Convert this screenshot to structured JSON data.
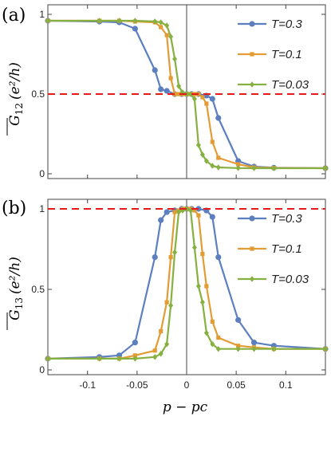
{
  "colors": {
    "T03": "#5b7fbf",
    "T01": "#e39c35",
    "T003": "#86b040",
    "ref": "#e8191a"
  },
  "chart_data": [
    {
      "type": "line",
      "panel_label": "(a)",
      "ylabel_main": "G",
      "ylabel_sub": "12",
      "ylabel_units": "(e²/h)",
      "xlabel": "p − pc",
      "xlim": [
        -0.14,
        0.14
      ],
      "ylim": [
        0,
        1
      ],
      "yticks": [
        0,
        0.5,
        1
      ],
      "ytick_labels": [
        "0",
        "0.5",
        "1"
      ],
      "reference_line_y": 0.5,
      "legend_position": "top-right",
      "series": [
        {
          "name": "T=0.3",
          "marker": "circle",
          "x": [
            -0.14,
            -0.088,
            -0.068,
            -0.052,
            -0.032,
            -0.026,
            -0.02,
            -0.012,
            -0.005,
            0,
            0.005,
            0.012,
            0.02,
            0.026,
            0.032,
            0.052,
            0.068,
            0.088,
            0.14
          ],
          "y": [
            0.96,
            0.955,
            0.95,
            0.91,
            0.65,
            0.53,
            0.52,
            0.5,
            0.5,
            0.5,
            0.5,
            0.5,
            0.49,
            0.47,
            0.35,
            0.08,
            0.045,
            0.038,
            0.035
          ]
        },
        {
          "name": "T=0.1",
          "marker": "square",
          "x": [
            -0.14,
            -0.088,
            -0.068,
            -0.052,
            -0.032,
            -0.026,
            -0.02,
            -0.016,
            -0.012,
            -0.008,
            -0.004,
            0,
            0.004,
            0.008,
            0.012,
            0.016,
            0.02,
            0.026,
            0.032,
            0.052,
            0.068,
            0.088,
            0.14
          ],
          "y": [
            0.96,
            0.96,
            0.96,
            0.955,
            0.95,
            0.92,
            0.87,
            0.6,
            0.5,
            0.5,
            0.5,
            0.5,
            0.5,
            0.5,
            0.5,
            0.48,
            0.44,
            0.2,
            0.1,
            0.06,
            0.04,
            0.037,
            0.035
          ]
        },
        {
          "name": "T=0.03",
          "marker": "diamond",
          "x": [
            -0.14,
            -0.088,
            -0.068,
            -0.052,
            -0.032,
            -0.026,
            -0.02,
            -0.016,
            -0.012,
            -0.008,
            -0.004,
            0,
            0.004,
            0.008,
            0.012,
            0.016,
            0.02,
            0.026,
            0.032,
            0.052,
            0.068,
            0.088,
            0.14
          ],
          "y": [
            0.96,
            0.96,
            0.96,
            0.96,
            0.955,
            0.95,
            0.93,
            0.86,
            0.72,
            0.55,
            0.51,
            0.5,
            0.5,
            0.47,
            0.18,
            0.12,
            0.08,
            0.05,
            0.04,
            0.036,
            0.035,
            0.035,
            0.035
          ]
        }
      ]
    },
    {
      "type": "line",
      "panel_label": "(b)",
      "ylabel_main": "G",
      "ylabel_sub": "13",
      "ylabel_units": "(e²/h)",
      "xlabel": "p − pc",
      "xlim": [
        -0.14,
        0.14
      ],
      "ylim": [
        0,
        1
      ],
      "yticks": [
        0,
        0.5,
        1
      ],
      "ytick_labels": [
        "0",
        "0.5",
        "1"
      ],
      "xticks": [
        -0.1,
        -0.05,
        0,
        0.05,
        0.1
      ],
      "xtick_labels": [
        "-0.1",
        "-0.05",
        "0",
        "0.05",
        "0.1"
      ],
      "reference_line_y": 1,
      "legend_position": "top-right",
      "series": [
        {
          "name": "T=0.3",
          "marker": "circle",
          "x": [
            -0.14,
            -0.088,
            -0.068,
            -0.052,
            -0.032,
            -0.026,
            -0.02,
            -0.012,
            -0.005,
            0,
            0.005,
            0.012,
            0.02,
            0.026,
            0.032,
            0.052,
            0.068,
            0.088,
            0.14
          ],
          "y": [
            0.07,
            0.08,
            0.09,
            0.17,
            0.7,
            0.93,
            0.98,
            0.99,
            1.0,
            1.0,
            1.0,
            1.0,
            0.99,
            0.95,
            0.7,
            0.31,
            0.17,
            0.15,
            0.13
          ]
        },
        {
          "name": "T=0.1",
          "marker": "square",
          "x": [
            -0.14,
            -0.088,
            -0.068,
            -0.052,
            -0.032,
            -0.026,
            -0.02,
            -0.016,
            -0.012,
            -0.008,
            -0.004,
            0,
            0.004,
            0.008,
            0.012,
            0.016,
            0.02,
            0.026,
            0.032,
            0.052,
            0.068,
            0.088,
            0.14
          ],
          "y": [
            0.07,
            0.07,
            0.07,
            0.09,
            0.12,
            0.24,
            0.42,
            0.7,
            0.98,
            0.99,
            1.0,
            1.0,
            1.0,
            0.99,
            0.96,
            0.72,
            0.52,
            0.3,
            0.2,
            0.15,
            0.14,
            0.13,
            0.13
          ]
        },
        {
          "name": "T=0.03",
          "marker": "diamond",
          "x": [
            -0.14,
            -0.088,
            -0.068,
            -0.052,
            -0.032,
            -0.026,
            -0.02,
            -0.016,
            -0.012,
            -0.008,
            -0.004,
            0,
            0.004,
            0.008,
            0.012,
            0.016,
            0.02,
            0.026,
            0.032,
            0.052,
            0.068,
            0.088,
            0.14
          ],
          "y": [
            0.07,
            0.07,
            0.07,
            0.07,
            0.08,
            0.1,
            0.16,
            0.4,
            0.73,
            0.98,
            0.99,
            1.0,
            0.99,
            0.76,
            0.52,
            0.42,
            0.23,
            0.16,
            0.13,
            0.13,
            0.13,
            0.13,
            0.13
          ]
        }
      ]
    }
  ]
}
